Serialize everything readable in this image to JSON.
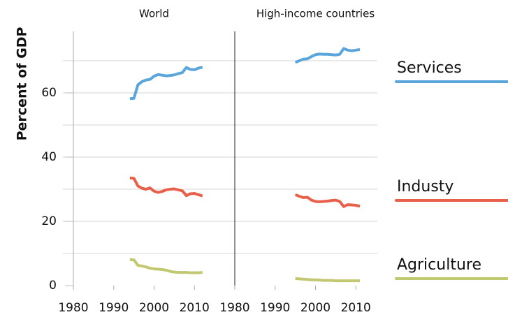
{
  "y_label": "Percent of GDP",
  "chart_data": [
    {
      "type": "line",
      "title": "World",
      "x": [
        1994,
        1995,
        1996,
        1997,
        1998,
        1999,
        2000,
        2001,
        2002,
        2003,
        2004,
        2005,
        2006,
        2007,
        2008,
        2009,
        2010,
        2011,
        2012
      ],
      "series": [
        {
          "name": "Services",
          "color": "#5aa6dc",
          "values": [
            58.2,
            58.3,
            62.5,
            63.5,
            64,
            64.2,
            65.2,
            65.7,
            65.5,
            65.3,
            65.4,
            65.6,
            66,
            66.3,
            67.9,
            67.3,
            67.2,
            67.7,
            68
          ]
        },
        {
          "name": "Industy",
          "color": "#e8604a",
          "values": [
            33.5,
            33.4,
            31,
            30.3,
            30,
            30.4,
            29.4,
            29,
            29.3,
            29.8,
            30,
            30.1,
            29.8,
            29.5,
            28,
            28.6,
            28.7,
            28.3,
            27.9
          ]
        },
        {
          "name": "Agriculture",
          "color": "#c2c870",
          "values": [
            8.1,
            8,
            6.3,
            6.1,
            5.8,
            5.4,
            5.2,
            5.1,
            5,
            4.8,
            4.4,
            4.2,
            4.1,
            4.1,
            4.1,
            4,
            4,
            4,
            4.1
          ]
        }
      ],
      "xlim": [
        1980,
        2020
      ],
      "xticks": [
        1980,
        1990,
        2000,
        2010
      ],
      "ylim": [
        0,
        80
      ],
      "yticks": [
        0,
        20,
        40,
        60
      ],
      "ygrid": [
        10,
        20,
        30,
        40,
        50,
        60,
        70
      ]
    },
    {
      "type": "line",
      "title": "High-income countries",
      "x": [
        1995,
        1996,
        1997,
        1998,
        1999,
        2000,
        2001,
        2002,
        2003,
        2004,
        2005,
        2006,
        2007,
        2008,
        2009,
        2010,
        2011
      ],
      "series": [
        {
          "color": "#5aa6dc",
          "values": [
            69.5,
            70,
            70.5,
            70.6,
            71.3,
            71.9,
            72.1,
            72,
            72,
            71.9,
            71.8,
            72,
            73.8,
            73.3,
            73.1,
            73.3,
            73.5
          ]
        },
        {
          "color": "#e8604a",
          "values": [
            28.3,
            27.8,
            27.4,
            27.5,
            26.6,
            26.2,
            26.1,
            26.2,
            26.3,
            26.5,
            26.6,
            26.2,
            24.6,
            25.2,
            25.1,
            25,
            24.7
          ]
        },
        {
          "color": "#c2c870",
          "values": [
            2.2,
            2.1,
            2,
            1.9,
            1.8,
            1.8,
            1.7,
            1.6,
            1.6,
            1.6,
            1.5,
            1.5,
            1.5,
            1.5,
            1.5,
            1.5,
            1.5
          ]
        }
      ],
      "xlim": [
        1980,
        2020
      ],
      "xticks": [
        1980,
        1990,
        2000,
        2010
      ],
      "ylim": [
        0,
        80
      ],
      "ygrid": [
        10,
        20,
        30,
        40,
        50,
        60,
        70
      ]
    }
  ]
}
